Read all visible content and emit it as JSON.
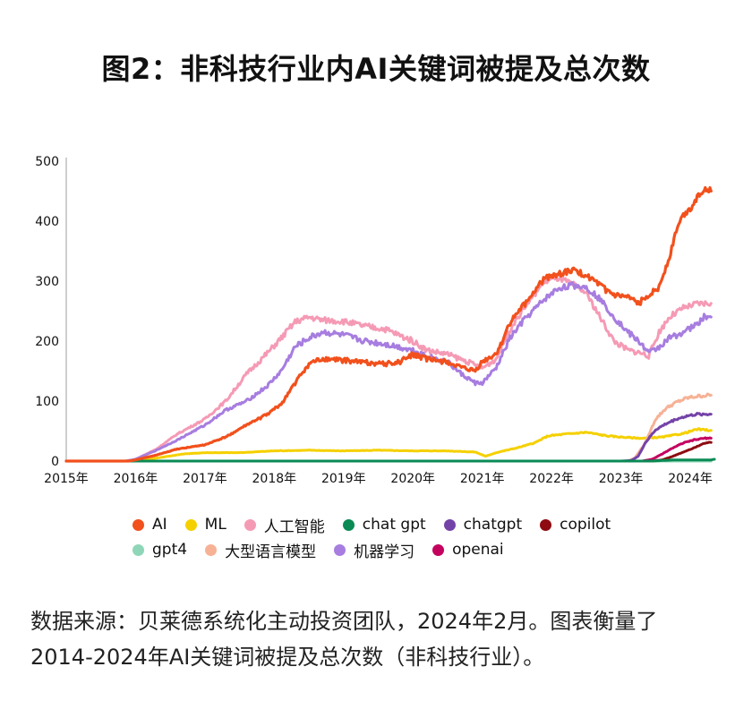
{
  "title": "图2：非科技行业内AI关键词被提及总次数",
  "caption_line1": "数据来源：贝莱德系统化主动投资团队，2024年2月。图表衡量了",
  "caption_line2": "2014-2024年AI关键词被提及总次数（非科技行业）。",
  "chart_data": {
    "type": "line",
    "title": "图2：非科技行业内AI关键词被提及总次数",
    "xlabel": "",
    "ylabel": "",
    "xlim": [
      2015.0,
      2024.4
    ],
    "ylim": [
      0,
      500
    ],
    "yticks": [
      "0",
      "100",
      "200",
      "300",
      "400",
      "500"
    ],
    "xticks": [
      "2015年",
      "2016年",
      "2017年",
      "2018年",
      "2019年",
      "2020年",
      "2021年",
      "2022年",
      "2023年",
      "2024年"
    ],
    "grid": false,
    "legend_position": "bottom",
    "series": [
      {
        "name": "AI",
        "color": "#f2501c",
        "points": [
          [
            2015.0,
            0
          ],
          [
            2015.9,
            0
          ],
          [
            2016.0,
            2
          ],
          [
            2016.3,
            10
          ],
          [
            2016.6,
            20
          ],
          [
            2017.0,
            27
          ],
          [
            2017.3,
            40
          ],
          [
            2017.6,
            60
          ],
          [
            2017.9,
            78
          ],
          [
            2018.1,
            95
          ],
          [
            2018.3,
            130
          ],
          [
            2018.5,
            162
          ],
          [
            2018.7,
            170
          ],
          [
            2019.0,
            168
          ],
          [
            2019.3,
            165
          ],
          [
            2019.6,
            162
          ],
          [
            2019.8,
            165
          ],
          [
            2020.0,
            178
          ],
          [
            2020.2,
            170
          ],
          [
            2020.5,
            165
          ],
          [
            2020.7,
            155
          ],
          [
            2020.9,
            150
          ],
          [
            2021.0,
            165
          ],
          [
            2021.2,
            178
          ],
          [
            2021.4,
            230
          ],
          [
            2021.6,
            260
          ],
          [
            2021.9,
            305
          ],
          [
            2022.1,
            312
          ],
          [
            2022.3,
            318
          ],
          [
            2022.5,
            310
          ],
          [
            2022.7,
            292
          ],
          [
            2022.9,
            276
          ],
          [
            2023.1,
            272
          ],
          [
            2023.25,
            262
          ],
          [
            2023.4,
            278
          ],
          [
            2023.55,
            290
          ],
          [
            2023.7,
            340
          ],
          [
            2023.8,
            385
          ],
          [
            2023.9,
            410
          ],
          [
            2024.0,
            420
          ],
          [
            2024.1,
            440
          ],
          [
            2024.2,
            455
          ],
          [
            2024.3,
            450
          ]
        ]
      },
      {
        "name": "ML",
        "color": "#f5d000",
        "points": [
          [
            2015.0,
            0
          ],
          [
            2016.0,
            0
          ],
          [
            2016.3,
            5
          ],
          [
            2016.7,
            12
          ],
          [
            2017.0,
            14
          ],
          [
            2017.5,
            14
          ],
          [
            2018.0,
            17
          ],
          [
            2018.5,
            18
          ],
          [
            2019.0,
            17
          ],
          [
            2019.5,
            18
          ],
          [
            2020.0,
            17
          ],
          [
            2020.5,
            17
          ],
          [
            2020.9,
            15
          ],
          [
            2021.05,
            8
          ],
          [
            2021.2,
            14
          ],
          [
            2021.5,
            22
          ],
          [
            2021.75,
            30
          ],
          [
            2021.95,
            42
          ],
          [
            2022.2,
            45
          ],
          [
            2022.5,
            48
          ],
          [
            2022.8,
            42
          ],
          [
            2023.0,
            40
          ],
          [
            2023.3,
            38
          ],
          [
            2023.6,
            40
          ],
          [
            2023.9,
            46
          ],
          [
            2024.1,
            53
          ],
          [
            2024.3,
            51
          ]
        ]
      },
      {
        "name": "人工智能",
        "color": "#f59ab5",
        "points": [
          [
            2015.0,
            0
          ],
          [
            2015.9,
            0
          ],
          [
            2016.0,
            3
          ],
          [
            2016.3,
            20
          ],
          [
            2016.6,
            45
          ],
          [
            2017.0,
            70
          ],
          [
            2017.3,
            100
          ],
          [
            2017.6,
            145
          ],
          [
            2017.9,
            180
          ],
          [
            2018.1,
            205
          ],
          [
            2018.3,
            232
          ],
          [
            2018.5,
            240
          ],
          [
            2018.7,
            235
          ],
          [
            2019.0,
            233
          ],
          [
            2019.3,
            225
          ],
          [
            2019.6,
            220
          ],
          [
            2019.8,
            210
          ],
          [
            2020.0,
            200
          ],
          [
            2020.2,
            185
          ],
          [
            2020.5,
            178
          ],
          [
            2020.8,
            165
          ],
          [
            2021.0,
            155
          ],
          [
            2021.2,
            170
          ],
          [
            2021.4,
            220
          ],
          [
            2021.6,
            255
          ],
          [
            2021.9,
            300
          ],
          [
            2022.1,
            305
          ],
          [
            2022.3,
            295
          ],
          [
            2022.5,
            280
          ],
          [
            2022.7,
            240
          ],
          [
            2022.9,
            200
          ],
          [
            2023.1,
            185
          ],
          [
            2023.3,
            180
          ],
          [
            2023.4,
            175
          ],
          [
            2023.55,
            215
          ],
          [
            2023.7,
            240
          ],
          [
            2023.9,
            255
          ],
          [
            2024.1,
            262
          ],
          [
            2024.3,
            263
          ]
        ]
      },
      {
        "name": "chat gpt",
        "color": "#0a8a55",
        "points": [
          [
            2015.0,
            0
          ],
          [
            2023.45,
            0
          ],
          [
            2023.6,
            1
          ],
          [
            2023.8,
            2
          ],
          [
            2024.0,
            2
          ],
          [
            2024.3,
            2
          ],
          [
            2024.35,
            3
          ]
        ]
      },
      {
        "name": "chatgpt",
        "color": "#7443a8",
        "points": [
          [
            2015.0,
            0
          ],
          [
            2023.0,
            0
          ],
          [
            2023.15,
            1
          ],
          [
            2023.25,
            8
          ],
          [
            2023.35,
            30
          ],
          [
            2023.5,
            52
          ],
          [
            2023.65,
            62
          ],
          [
            2023.8,
            70
          ],
          [
            2023.95,
            75
          ],
          [
            2024.1,
            78
          ],
          [
            2024.3,
            78
          ]
        ]
      },
      {
        "name": "copilot",
        "color": "#8e0b11",
        "points": [
          [
            2015.0,
            0
          ],
          [
            2023.45,
            0
          ],
          [
            2023.6,
            2
          ],
          [
            2023.75,
            8
          ],
          [
            2023.9,
            15
          ],
          [
            2024.05,
            22
          ],
          [
            2024.2,
            30
          ],
          [
            2024.3,
            31
          ]
        ]
      },
      {
        "name": "gpt4",
        "color": "#8fd6b8",
        "points": [
          [
            2015.0,
            0
          ],
          [
            2024.3,
            0
          ]
        ]
      },
      {
        "name": "大型语言模型",
        "color": "#f7b195",
        "points": [
          [
            2015.0,
            0
          ],
          [
            2023.1,
            0
          ],
          [
            2023.2,
            5
          ],
          [
            2023.35,
            30
          ],
          [
            2023.5,
            70
          ],
          [
            2023.65,
            88
          ],
          [
            2023.8,
            98
          ],
          [
            2023.95,
            105
          ],
          [
            2024.1,
            108
          ],
          [
            2024.3,
            110
          ]
        ]
      },
      {
        "name": "机器学习",
        "color": "#a77de0",
        "points": [
          [
            2015.0,
            0
          ],
          [
            2015.85,
            0
          ],
          [
            2016.0,
            3
          ],
          [
            2016.3,
            18
          ],
          [
            2016.6,
            35
          ],
          [
            2017.0,
            60
          ],
          [
            2017.3,
            85
          ],
          [
            2017.6,
            100
          ],
          [
            2017.9,
            125
          ],
          [
            2018.1,
            150
          ],
          [
            2018.3,
            190
          ],
          [
            2018.5,
            205
          ],
          [
            2018.7,
            215
          ],
          [
            2019.0,
            210
          ],
          [
            2019.3,
            200
          ],
          [
            2019.6,
            195
          ],
          [
            2019.8,
            190
          ],
          [
            2020.0,
            185
          ],
          [
            2020.2,
            175
          ],
          [
            2020.5,
            165
          ],
          [
            2020.7,
            145
          ],
          [
            2020.9,
            130
          ],
          [
            2021.0,
            130
          ],
          [
            2021.2,
            155
          ],
          [
            2021.4,
            205
          ],
          [
            2021.6,
            235
          ],
          [
            2021.9,
            270
          ],
          [
            2022.1,
            288
          ],
          [
            2022.3,
            293
          ],
          [
            2022.5,
            290
          ],
          [
            2022.7,
            270
          ],
          [
            2022.9,
            240
          ],
          [
            2023.1,
            215
          ],
          [
            2023.3,
            195
          ],
          [
            2023.4,
            180
          ],
          [
            2023.55,
            190
          ],
          [
            2023.7,
            205
          ],
          [
            2023.9,
            215
          ],
          [
            2024.1,
            228
          ],
          [
            2024.2,
            240
          ],
          [
            2024.3,
            240
          ]
        ]
      },
      {
        "name": "openai",
        "color": "#c4005f",
        "points": [
          [
            2015.0,
            0
          ],
          [
            2023.3,
            0
          ],
          [
            2023.45,
            3
          ],
          [
            2023.6,
            12
          ],
          [
            2023.75,
            22
          ],
          [
            2023.9,
            30
          ],
          [
            2024.05,
            35
          ],
          [
            2024.2,
            38
          ],
          [
            2024.3,
            38
          ]
        ]
      }
    ]
  }
}
